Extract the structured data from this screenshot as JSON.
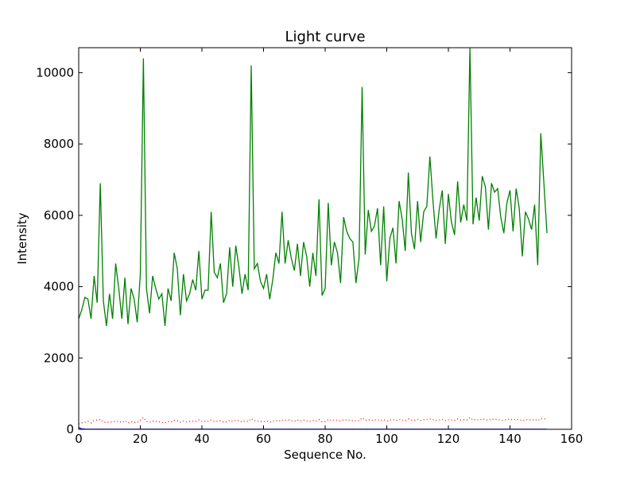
{
  "chart_data": {
    "type": "line",
    "title": "Light curve",
    "xlabel": "Sequence No.",
    "ylabel": "Intensity",
    "xlim": [
      0,
      160
    ],
    "ylim": [
      0,
      10700
    ],
    "xticks": [
      0,
      20,
      40,
      60,
      80,
      100,
      120,
      140,
      160
    ],
    "yticks": [
      0,
      2000,
      4000,
      6000,
      8000,
      10000
    ],
    "grid": false,
    "series": [
      {
        "color": "#008000",
        "style": "solid",
        "x": [
          0,
          1,
          2,
          3,
          4,
          5,
          6,
          7,
          8,
          9,
          10,
          11,
          12,
          13,
          14,
          15,
          16,
          17,
          18,
          19,
          20,
          21,
          22,
          23,
          24,
          25,
          26,
          27,
          28,
          29,
          30,
          31,
          32,
          33,
          34,
          35,
          36,
          37,
          38,
          39,
          40,
          41,
          42,
          43,
          44,
          45,
          46,
          47,
          48,
          49,
          50,
          51,
          52,
          53,
          54,
          55,
          56,
          57,
          58,
          59,
          60,
          61,
          62,
          63,
          64,
          65,
          66,
          67,
          68,
          69,
          70,
          71,
          72,
          73,
          74,
          75,
          76,
          77,
          78,
          79,
          80,
          81,
          82,
          83,
          84,
          85,
          86,
          87,
          88,
          89,
          90,
          91,
          92,
          93,
          94,
          95,
          96,
          97,
          98,
          99,
          100,
          101,
          102,
          103,
          104,
          105,
          106,
          107,
          108,
          109,
          110,
          111,
          112,
          113,
          114,
          115,
          116,
          117,
          118,
          119,
          120,
          121,
          122,
          123,
          124,
          125,
          126,
          127,
          128,
          129,
          130,
          131,
          132,
          133,
          134,
          135,
          136,
          137,
          138,
          139,
          140,
          141,
          142,
          143,
          144,
          145,
          146,
          147,
          148,
          149,
          150,
          151,
          152
        ],
        "y": [
          3100,
          3350,
          3700,
          3650,
          3100,
          4300,
          3550,
          6900,
          3600,
          2900,
          3800,
          3100,
          4650,
          3950,
          3100,
          4250,
          2950,
          3950,
          3650,
          3000,
          4350,
          10400,
          3950,
          3250,
          4300,
          3950,
          3650,
          3800,
          2900,
          3950,
          3600,
          4950,
          4500,
          3200,
          4350,
          3600,
          3800,
          4200,
          3900,
          5000,
          3650,
          3900,
          3900,
          6100,
          4400,
          4250,
          4650,
          3550,
          3800,
          5100,
          4000,
          5150,
          4550,
          3800,
          4350,
          3900,
          10200,
          4500,
          4650,
          4150,
          3950,
          4350,
          3650,
          4200,
          4950,
          4650,
          6100,
          4650,
          5300,
          4800,
          4450,
          5200,
          4300,
          5250,
          4850,
          4000,
          4950,
          4300,
          6450,
          3750,
          3950,
          6350,
          4600,
          5250,
          4950,
          4100,
          5950,
          5550,
          5350,
          5250,
          4100,
          4800,
          9600,
          4900,
          6150,
          5550,
          5700,
          6200,
          4600,
          6250,
          4150,
          5350,
          5650,
          4650,
          6400,
          5900,
          5000,
          7200,
          5500,
          5050,
          6400,
          5250,
          6100,
          6250,
          7650,
          6400,
          5350,
          6150,
          6700,
          5200,
          6600,
          5800,
          5450,
          6950,
          5800,
          6300,
          5850,
          10700,
          5750,
          6500,
          5850,
          7100,
          6800,
          5600,
          6900,
          6650,
          6750,
          5950,
          5500,
          6350,
          6700,
          5550,
          6750,
          6200,
          4850,
          6100,
          5900,
          5600,
          6300,
          4600,
          8300,
          6900,
          5500
        ]
      },
      {
        "color": "#ff0000",
        "style": "dotted",
        "x": [
          0,
          1,
          2,
          3,
          4,
          5,
          6,
          7,
          8,
          9,
          10,
          11,
          12,
          13,
          14,
          15,
          16,
          17,
          18,
          19,
          20,
          21,
          22,
          23,
          24,
          25,
          26,
          27,
          28,
          29,
          30,
          31,
          32,
          33,
          34,
          35,
          36,
          37,
          38,
          39,
          40,
          41,
          42,
          43,
          44,
          45,
          46,
          47,
          48,
          49,
          50,
          51,
          52,
          53,
          54,
          55,
          56,
          57,
          58,
          59,
          60,
          61,
          62,
          63,
          64,
          65,
          66,
          67,
          68,
          69,
          70,
          71,
          72,
          73,
          74,
          75,
          76,
          77,
          78,
          79,
          80,
          81,
          82,
          83,
          84,
          85,
          86,
          87,
          88,
          89,
          90,
          91,
          92,
          93,
          94,
          95,
          96,
          97,
          98,
          99,
          100,
          101,
          102,
          103,
          104,
          105,
          106,
          107,
          108,
          109,
          110,
          111,
          112,
          113,
          114,
          115,
          116,
          117,
          118,
          119,
          120,
          121,
          122,
          123,
          124,
          125,
          126,
          127,
          128,
          129,
          130,
          131,
          132,
          133,
          134,
          135,
          136,
          137,
          138,
          139,
          140,
          141,
          142,
          143,
          144,
          145,
          146,
          147,
          148,
          149,
          150,
          151,
          152
        ],
        "y": [
          150,
          180,
          200,
          220,
          180,
          250,
          260,
          280,
          200,
          190,
          210,
          200,
          230,
          220,
          190,
          240,
          180,
          210,
          200,
          190,
          260,
          330,
          220,
          200,
          230,
          220,
          210,
          200,
          180,
          220,
          200,
          250,
          240,
          200,
          230,
          210,
          220,
          230,
          220,
          260,
          220,
          230,
          220,
          260,
          220,
          230,
          240,
          200,
          210,
          250,
          220,
          260,
          240,
          210,
          230,
          220,
          300,
          240,
          230,
          220,
          210,
          230,
          200,
          220,
          250,
          230,
          260,
          240,
          270,
          240,
          230,
          260,
          230,
          260,
          240,
          220,
          250,
          230,
          270,
          210,
          220,
          270,
          240,
          260,
          250,
          230,
          270,
          260,
          250,
          250,
          230,
          240,
          320,
          250,
          270,
          250,
          260,
          270,
          240,
          270,
          230,
          260,
          270,
          250,
          280,
          260,
          240,
          290,
          260,
          250,
          280,
          250,
          270,
          270,
          290,
          270,
          250,
          260,
          280,
          240,
          270,
          260,
          250,
          290,
          260,
          270,
          260,
          330,
          260,
          280,
          260,
          290,
          280,
          250,
          290,
          280,
          280,
          260,
          250,
          280,
          290,
          260,
          290,
          270,
          240,
          270,
          270,
          260,
          280,
          240,
          300,
          290,
          300
        ]
      },
      {
        "color": "#0000ff",
        "style": "solid",
        "x": [
          0,
          1,
          2,
          3,
          4,
          5,
          6,
          7,
          8,
          9,
          10,
          11,
          12,
          13,
          14,
          15,
          16,
          17,
          18,
          19,
          20,
          21,
          22,
          23,
          24,
          25,
          26,
          27,
          28,
          29,
          30,
          31,
          32,
          33,
          34,
          35,
          36,
          37,
          38,
          39,
          40,
          41,
          42,
          43,
          44,
          45,
          46,
          47,
          48,
          49,
          50,
          51,
          52,
          53,
          54,
          55,
          56,
          57,
          58,
          59,
          60,
          61,
          62,
          63,
          64,
          65,
          66,
          67,
          68,
          69,
          70,
          71,
          72,
          73,
          74,
          75,
          76,
          77,
          78,
          79,
          80,
          81,
          82,
          83,
          84,
          85,
          86,
          87,
          88,
          89,
          90,
          91,
          92,
          93,
          94,
          95,
          96,
          97,
          98,
          99,
          100,
          101,
          102,
          103,
          104,
          105,
          106,
          107,
          108,
          109,
          110,
          111,
          112,
          113,
          114,
          115,
          116,
          117,
          118,
          119,
          120,
          121,
          122,
          123,
          124,
          125,
          126,
          127,
          128,
          129,
          130,
          131,
          132,
          133,
          134,
          135,
          136,
          137,
          138,
          139,
          140,
          141,
          142,
          143,
          144,
          145,
          146,
          147,
          148,
          149,
          150,
          151,
          152
        ],
        "y": [
          50,
          10,
          5,
          3,
          2,
          2,
          2,
          2,
          2,
          2,
          2,
          2,
          2,
          2,
          2,
          2,
          2,
          2,
          2,
          2,
          2,
          2,
          2,
          2,
          2,
          2,
          2,
          2,
          2,
          2,
          2,
          2,
          2,
          2,
          2,
          2,
          2,
          2,
          2,
          2,
          2,
          2,
          2,
          2,
          2,
          2,
          2,
          2,
          2,
          2,
          2,
          2,
          2,
          2,
          2,
          2,
          2,
          2,
          2,
          2,
          2,
          2,
          2,
          2,
          2,
          2,
          2,
          2,
          2,
          2,
          2,
          2,
          2,
          2,
          2,
          2,
          2,
          2,
          2,
          2,
          2,
          2,
          2,
          2,
          2,
          2,
          2,
          2,
          2,
          2,
          2,
          2,
          2,
          2,
          2,
          2,
          2,
          2,
          2,
          2,
          2,
          2,
          2,
          2,
          2,
          2,
          2,
          2,
          2,
          2,
          2,
          2,
          2,
          2,
          2,
          2,
          2,
          2,
          2,
          2,
          2,
          2,
          2,
          2,
          2,
          2,
          2,
          2,
          2,
          2,
          2,
          2,
          2,
          2,
          2,
          2,
          2,
          2,
          2,
          2,
          2,
          2,
          2,
          2,
          2,
          2,
          2,
          2,
          2,
          2,
          2,
          2,
          2
        ]
      }
    ]
  }
}
